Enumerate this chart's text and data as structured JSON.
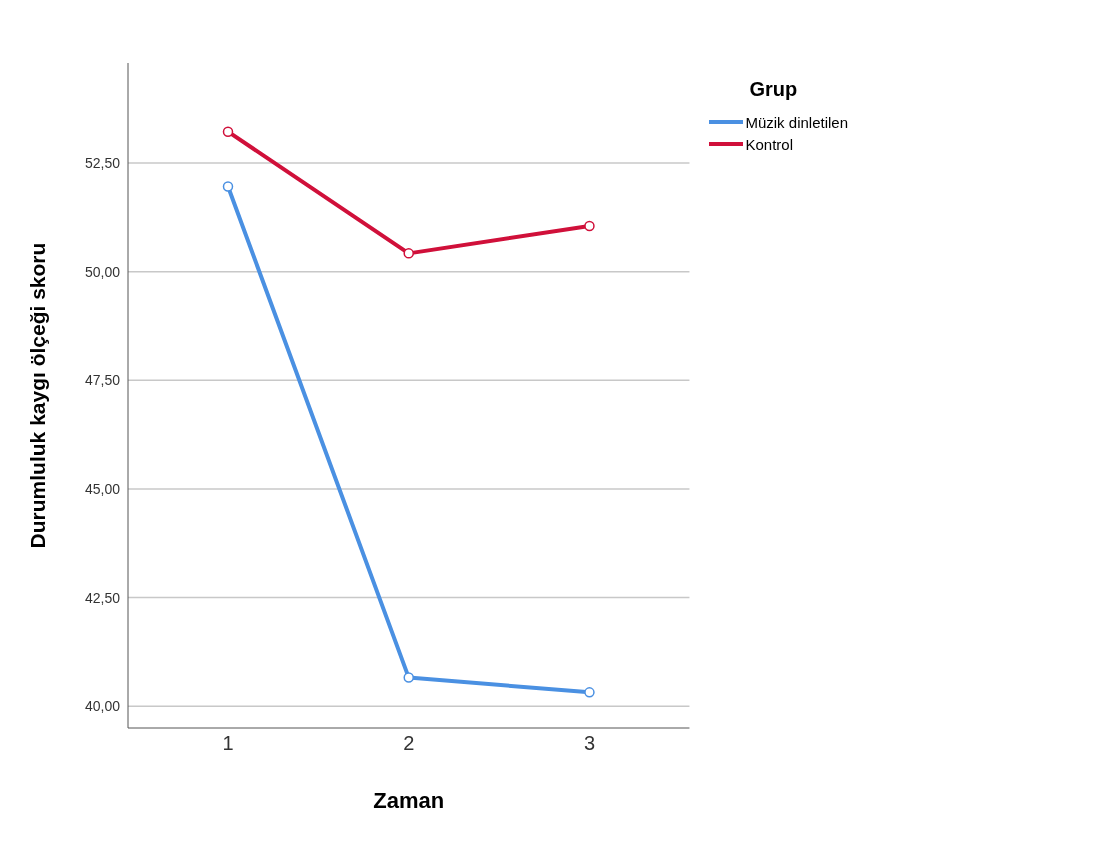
{
  "chart_data": {
    "type": "line",
    "xlabel": "Zaman",
    "ylabel": "Durumluluk kaygı ölçeği skoru",
    "legend_title": "Grup",
    "categories": [
      "1",
      "2",
      "3"
    ],
    "series": [
      {
        "name": "Müzik dinletilen",
        "color": "#4a90e2",
        "values": [
          51.96,
          40.66,
          40.32
        ]
      },
      {
        "name": "Kontrol",
        "color": "#d0103a",
        "values": [
          53.22,
          50.42,
          51.05
        ]
      }
    ],
    "ylim": [
      39.5,
      54.8
    ],
    "yticks": [
      {
        "value": 40,
        "label": "40,00"
      },
      {
        "value": 42.5,
        "label": "42,50"
      },
      {
        "value": 45,
        "label": "45,00"
      },
      {
        "value": 47.5,
        "label": "47,50"
      },
      {
        "value": 50,
        "label": "50,00"
      },
      {
        "value": 52.5,
        "label": "52,50"
      }
    ],
    "grid": "y",
    "legend": "top right",
    "marker": "circle",
    "line_style": "solid"
  }
}
